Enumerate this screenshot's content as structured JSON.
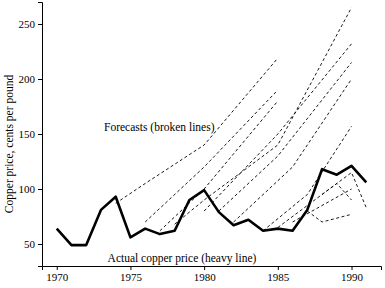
{
  "chart_data": {
    "type": "line",
    "y_label": "Copper price, cents per pound",
    "annotations": [
      "Forecasts (broken lines)",
      "Actual copper price (heavy line)"
    ],
    "xlim": [
      1969,
      1992
    ],
    "xticks": [
      1970,
      1975,
      1980,
      1985,
      1990
    ],
    "ylim": [
      30,
      270
    ],
    "yticks": [
      50,
      100,
      150,
      200,
      250
    ],
    "grid": false,
    "series": [
      {
        "color": "#000000",
        "line_style": "solid",
        "x": [
          1970,
          1971,
          1972,
          1973,
          1974,
          1975,
          1976,
          1977,
          1978,
          1979,
          1980,
          1981,
          1982,
          1983,
          1984,
          1985,
          1986,
          1987,
          1988,
          1989,
          1990,
          1991
        ],
        "values": [
          64,
          49,
          49,
          81,
          93,
          56,
          64,
          59,
          62,
          90,
          99,
          79,
          67,
          72,
          62,
          64,
          62,
          81,
          118,
          113,
          121,
          106
        ]
      },
      {
        "color": "#000000",
        "line_style": "dashed",
        "x": [
          1974,
          1976,
          1980,
          1985
        ],
        "values": [
          87,
          105,
          140,
          219
        ]
      },
      {
        "color": "#000000",
        "line_style": "dashed",
        "x": [
          1976,
          1980,
          1985
        ],
        "values": [
          70,
          120,
          190
        ]
      },
      {
        "color": "#000000",
        "line_style": "dashed",
        "x": [
          1977,
          1980,
          1985
        ],
        "values": [
          62,
          100,
          180
        ]
      },
      {
        "color": "#000000",
        "line_style": "dashed",
        "x": [
          1978,
          1980,
          1985,
          1990
        ],
        "values": [
          68,
          90,
          140,
          265
        ]
      },
      {
        "color": "#000000",
        "line_style": "dashed",
        "x": [
          1980,
          1985,
          1990
        ],
        "values": [
          80,
          150,
          232
        ]
      },
      {
        "color": "#000000",
        "line_style": "dashed",
        "x": [
          1981,
          1985,
          1990
        ],
        "values": [
          80,
          130,
          215
        ]
      },
      {
        "color": "#000000",
        "line_style": "dashed",
        "x": [
          1982,
          1986,
          1990
        ],
        "values": [
          70,
          120,
          200
        ]
      },
      {
        "color": "#000000",
        "line_style": "dashed",
        "x": [
          1984,
          1987,
          1990
        ],
        "values": [
          62,
          95,
          157
        ]
      },
      {
        "color": "#000000",
        "line_style": "dashed",
        "x": [
          1985,
          1988,
          1990,
          1991
        ],
        "values": [
          65,
          95,
          115,
          83
        ]
      },
      {
        "color": "#000000",
        "line_style": "dashed",
        "x": [
          1986,
          1988,
          1990
        ],
        "values": [
          70,
          85,
          100
        ]
      },
      {
        "color": "#000000",
        "line_style": "dashed",
        "x": [
          1987,
          1988,
          1990
        ],
        "values": [
          80,
          70,
          77
        ]
      },
      {
        "color": "#000000",
        "line_style": "dashed",
        "x": [
          1988,
          1989,
          1990
        ],
        "values": [
          95,
          105,
          90
        ]
      }
    ]
  }
}
